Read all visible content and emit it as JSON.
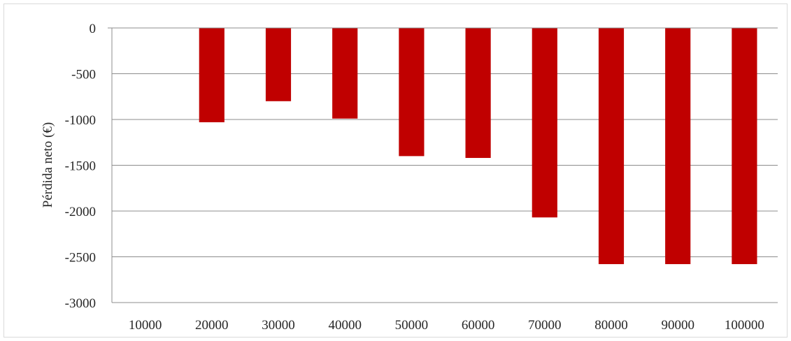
{
  "chart_data": {
    "type": "bar",
    "categories": [
      "10000",
      "20000",
      "30000",
      "40000",
      "50000",
      "60000",
      "70000",
      "80000",
      "90000",
      "100000"
    ],
    "series": [
      {
        "values": [
          0,
          -1030,
          -800,
          -990,
          -1400,
          -1420,
          -2070,
          -2580,
          -2580,
          -2580
        ],
        "color": "#c00000"
      }
    ],
    "ylabel": "Pérdida neto (€)",
    "xlabel": "",
    "ylim": [
      -3000,
      0
    ],
    "yticks": [
      0,
      -500,
      -1000,
      -1500,
      -2000,
      -2500,
      -3000
    ],
    "ytick_labels": [
      "0",
      "-500",
      "-1000",
      "-1500",
      "-2000",
      "-2500",
      "-3000"
    ],
    "grid": true,
    "legend": "none"
  }
}
